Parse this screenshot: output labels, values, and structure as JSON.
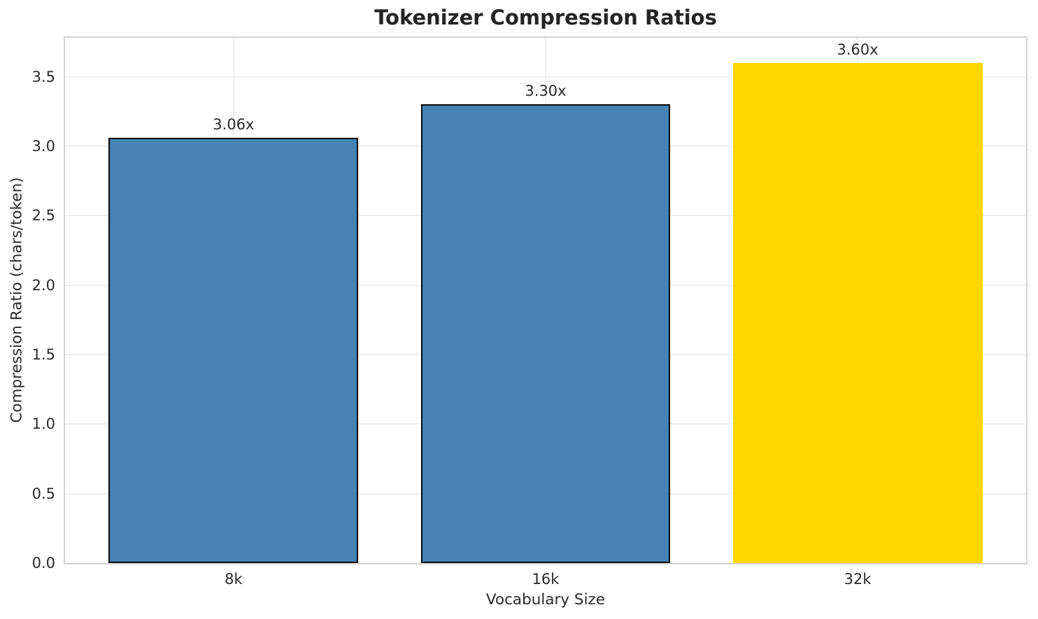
{
  "chart_data": {
    "type": "bar",
    "title": "Tokenizer Compression Ratios",
    "xlabel": "Vocabulary Size",
    "ylabel": "Compression Ratio (chars/token)",
    "categories": [
      "8k",
      "16k",
      "32k"
    ],
    "values": [
      3.06,
      3.3,
      3.6
    ],
    "bar_labels": [
      "3.06x",
      "3.30x",
      "3.60x"
    ],
    "bar_colors": [
      "#4682b4",
      "#4682b4",
      "#ffd700"
    ],
    "bar_edge_colors": [
      "#0a0a0a",
      "#0a0a0a",
      "#ffd700"
    ],
    "ylim": [
      0,
      3.78
    ],
    "yticks": [
      0.0,
      0.5,
      1.0,
      1.5,
      2.0,
      2.5,
      3.0,
      3.5
    ],
    "ytick_labels": [
      "0.0",
      "0.5",
      "1.0",
      "1.5",
      "2.0",
      "2.5",
      "3.0",
      "3.5"
    ],
    "grid": true,
    "grid_color": "#efefef",
    "spine_color": "#d4d4d4",
    "legend": null
  }
}
